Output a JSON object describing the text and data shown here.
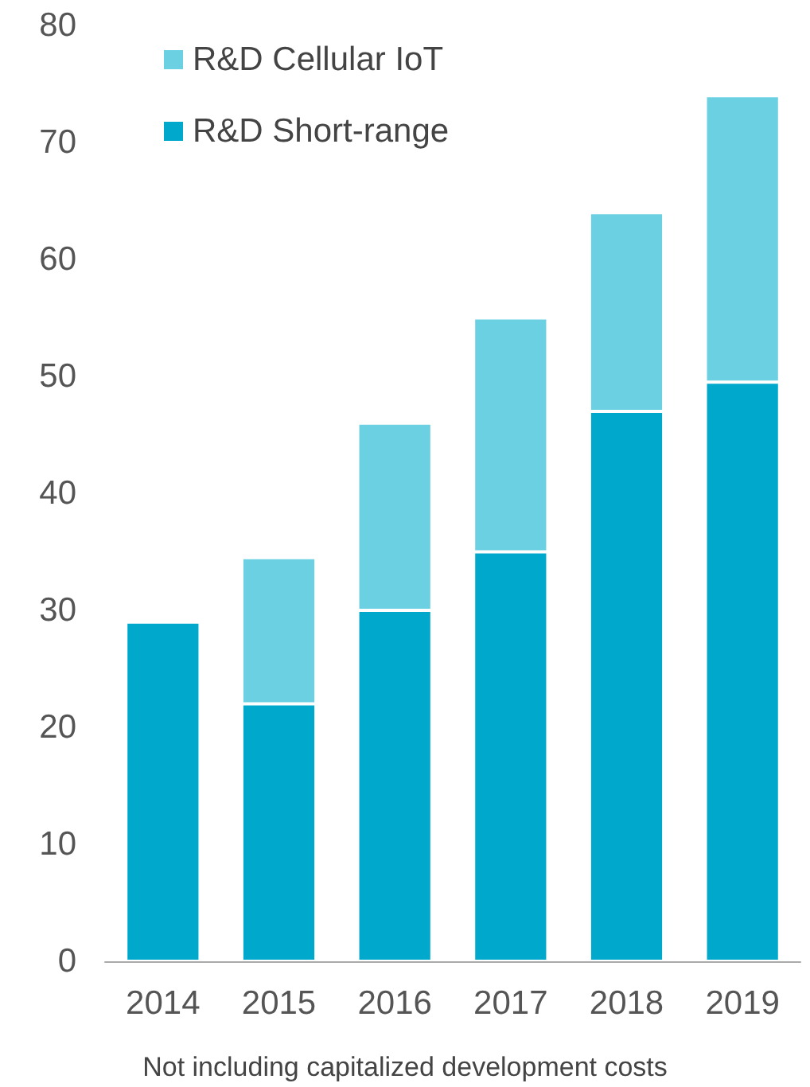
{
  "chart_data": {
    "type": "bar",
    "stacked": true,
    "categories": [
      "2014",
      "2015",
      "2016",
      "2017",
      "2018",
      "2019"
    ],
    "series": [
      {
        "name": "R&D Short-range",
        "color": "#00a9cc",
        "values": [
          29,
          22,
          30,
          35,
          47,
          49.5
        ]
      },
      {
        "name": "R&D Cellular IoT",
        "color": "#6bd0e2",
        "values": [
          null,
          12.5,
          16,
          20,
          17,
          24.5
        ]
      }
    ],
    "ylim": [
      0,
      80
    ],
    "yticks": [
      0,
      10,
      20,
      30,
      40,
      50,
      60,
      70,
      80
    ],
    "grid": false,
    "legend": "top left",
    "annotations": [
      "Not including capitalized development costs"
    ]
  }
}
